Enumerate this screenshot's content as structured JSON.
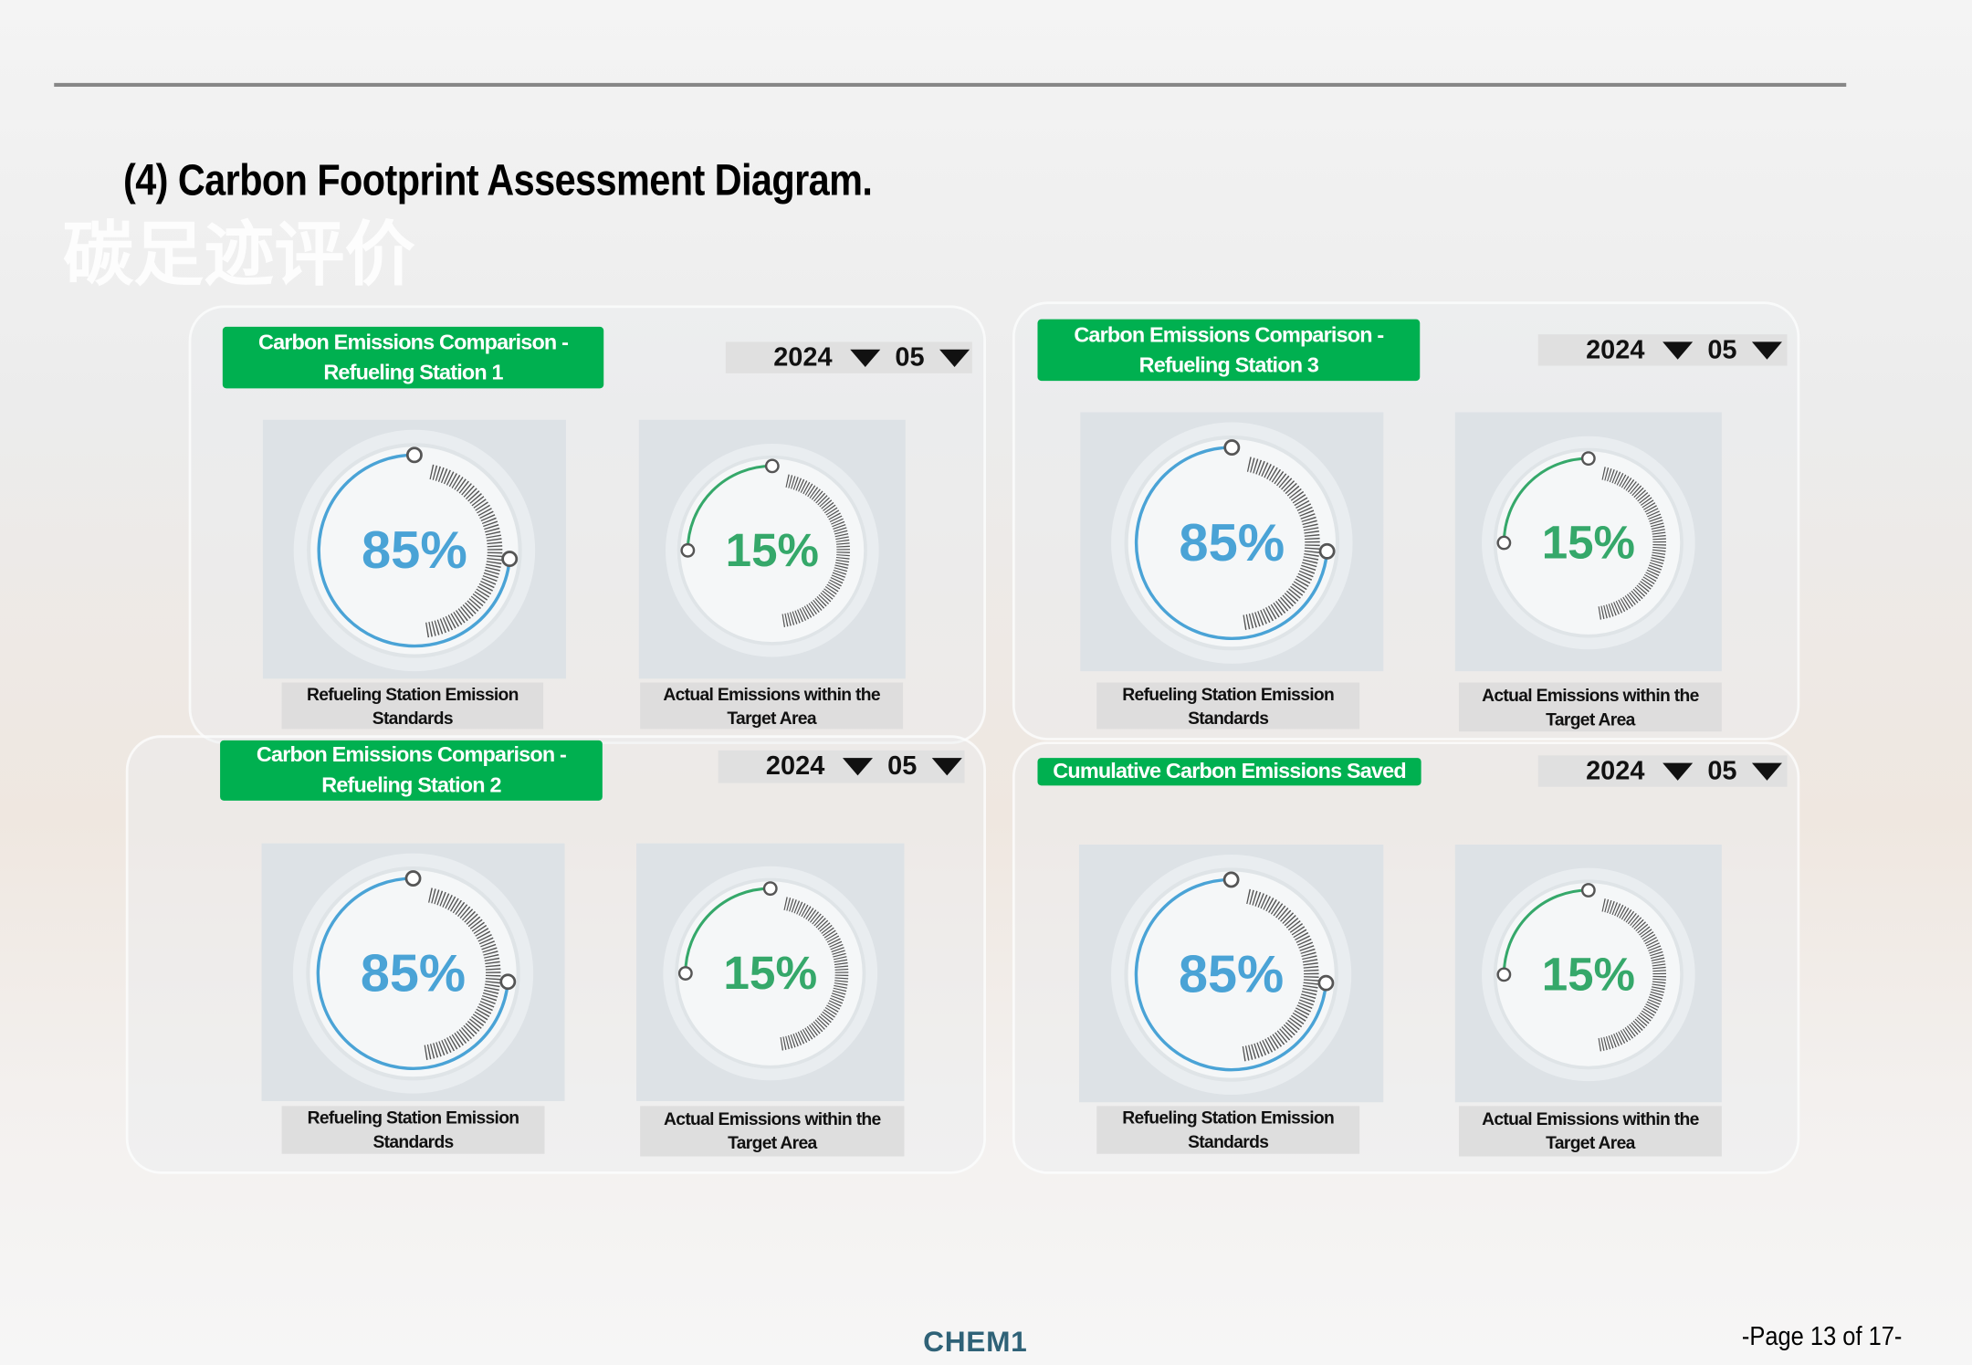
{
  "header": {
    "title": "(4) Carbon Footprint Assessment Diagram.",
    "watermark": "碳足迹评价"
  },
  "panels": [
    {
      "title": "Carbon Emissions Comparison - Refueling Station 1",
      "year": "2024",
      "month": "05",
      "gauges": [
        {
          "value": "85%",
          "caption": "Refueling Station Emission Standards"
        },
        {
          "value": "15%",
          "caption": "Actual Emissions within the Target Area"
        }
      ]
    },
    {
      "title": "Carbon Emissions Comparison - Refueling Station 3",
      "year": "2024",
      "month": "05",
      "gauges": [
        {
          "value": "85%",
          "caption": "Refueling Station Emission Standards"
        },
        {
          "value": "15%",
          "caption": "Actual Emissions within the Target Area"
        }
      ]
    },
    {
      "title": "Carbon Emissions Comparison - Refueling Station 2",
      "year": "2024",
      "month": "05",
      "gauges": [
        {
          "value": "85%",
          "caption": "Refueling Station Emission Standards"
        },
        {
          "value": "15%",
          "caption": "Actual Emissions within the Target Area"
        }
      ]
    },
    {
      "title": "Cumulative Carbon Emissions Saved",
      "year": "2024",
      "month": "05",
      "gauges": [
        {
          "value": "85%",
          "caption": "Refueling Station Emission Standards"
        },
        {
          "value": "15%",
          "caption": "Actual Emissions within the Target Area"
        }
      ]
    }
  ],
  "footer": {
    "brand": "CHEM1",
    "page": "-Page 13 of 17-"
  }
}
